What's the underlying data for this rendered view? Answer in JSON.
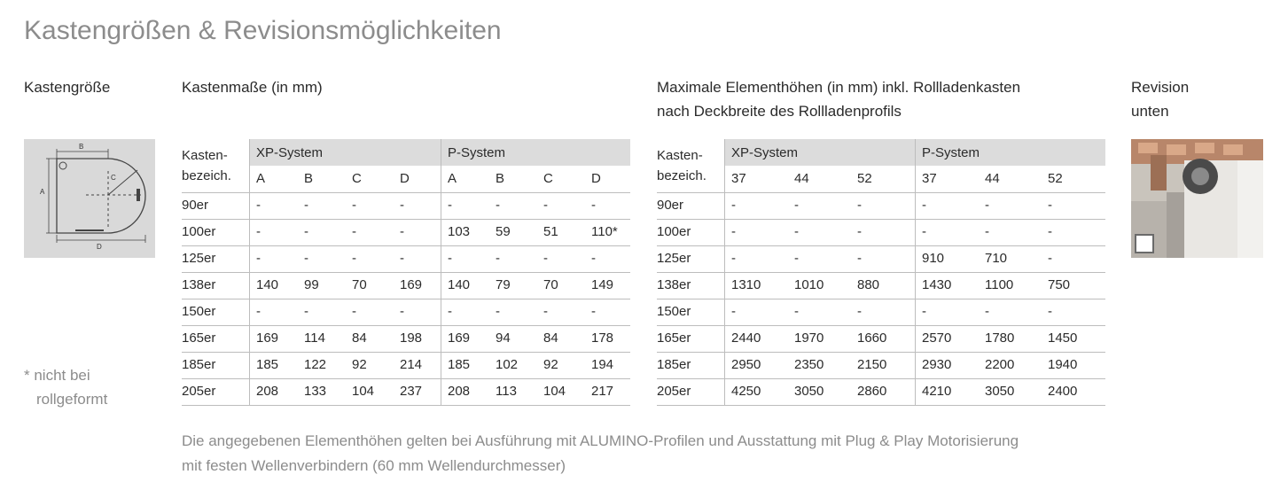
{
  "page_title": "Kastengrößen & Revisionsmöglichkeiten",
  "headings": {
    "size": "Kastengröße",
    "dimensions": "Kastenmaße (in mm)",
    "heights_line1": "Maximale Elementhöhen (in mm) inkl. Rollladenkasten",
    "heights_line2": "nach Deckbreite des Rollladenprofils",
    "revision_line1": "Revision",
    "revision_line2": "unten"
  },
  "diagram_labels": {
    "a": "A",
    "b": "B",
    "c": "C",
    "d": "D"
  },
  "footnote": {
    "line1": "* nicht bei",
    "line2": "rollgeformt"
  },
  "dimensions_table": {
    "row_header_line1": "Kasten-",
    "row_header_line2": "bezeich.",
    "groups": [
      "XP-System",
      "P-System"
    ],
    "subheaders": [
      "A",
      "B",
      "C",
      "D",
      "A",
      "B",
      "C",
      "D"
    ],
    "rows": [
      [
        "90er",
        "-",
        "-",
        "-",
        "-",
        "-",
        "-",
        "-",
        "-"
      ],
      [
        "100er",
        "-",
        "-",
        "-",
        "-",
        "103",
        "59",
        "51",
        "110*"
      ],
      [
        "125er",
        "-",
        "-",
        "-",
        "-",
        "-",
        "-",
        "-",
        "-"
      ],
      [
        "138er",
        "140",
        "99",
        "70",
        "169",
        "140",
        "79",
        "70",
        "149"
      ],
      [
        "150er",
        "-",
        "-",
        "-",
        "-",
        "-",
        "-",
        "-",
        "-"
      ],
      [
        "165er",
        "169",
        "114",
        "84",
        "198",
        "169",
        "94",
        "84",
        "178"
      ],
      [
        "185er",
        "185",
        "122",
        "92",
        "214",
        "185",
        "102",
        "92",
        "194"
      ],
      [
        "205er",
        "208",
        "133",
        "104",
        "237",
        "208",
        "113",
        "104",
        "217"
      ]
    ]
  },
  "heights_table": {
    "row_header_line1": "Kasten-",
    "row_header_line2": "bezeich.",
    "groups": [
      "XP-System",
      "P-System"
    ],
    "subheaders": [
      "37",
      "44",
      "52",
      "37",
      "44",
      "52"
    ],
    "rows": [
      [
        "90er",
        "-",
        "-",
        "-",
        "-",
        "-",
        "-"
      ],
      [
        "100er",
        "-",
        "-",
        "-",
        "-",
        "-",
        "-"
      ],
      [
        "125er",
        "-",
        "-",
        "-",
        "910",
        "710",
        "-"
      ],
      [
        "138er",
        "1310",
        "1010",
        "880",
        "1430",
        "1100",
        "750"
      ],
      [
        "150er",
        "-",
        "-",
        "-",
        "-",
        "-",
        "-"
      ],
      [
        "165er",
        "2440",
        "1970",
        "1660",
        "2570",
        "1780",
        "1450"
      ],
      [
        "185er",
        "2950",
        "2350",
        "2150",
        "2930",
        "2200",
        "1940"
      ],
      [
        "205er",
        "4250",
        "3050",
        "2860",
        "4210",
        "3050",
        "2400"
      ]
    ]
  },
  "bottom_note": {
    "line1": "Die angegebenen Elementhöhen gelten bei Ausführung mit ALUMINO-Profilen und Ausstattung mit Plug & Play Motorisierung",
    "line2": "mit festen Wellenverbindern (60 mm Wellendurchmesser)"
  },
  "colors": {
    "header_gray": "#dcdcdc",
    "title_gray": "#8c8c8c",
    "text": "#2b2b2b",
    "rule": "#bdbdbd",
    "diagram_bg": "#d9d9d9"
  }
}
